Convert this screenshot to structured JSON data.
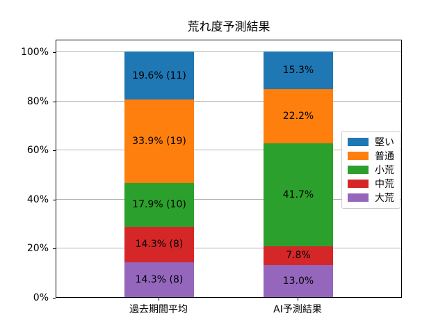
{
  "chart_data": {
    "type": "bar",
    "stacked": true,
    "title": "荒れ度予測結果",
    "categories": [
      "過去期間平均",
      "AI予測結果"
    ],
    "series": [
      {
        "name": "大荒",
        "color": "#9467bd",
        "values": [
          14.3,
          13.0
        ],
        "bar_labels": [
          "14.3% (8)",
          "13.0%"
        ]
      },
      {
        "name": "中荒",
        "color": "#d62728",
        "values": [
          14.3,
          7.8
        ],
        "bar_labels": [
          "14.3% (8)",
          "7.8%"
        ]
      },
      {
        "name": "小荒",
        "color": "#2ca02c",
        "values": [
          17.9,
          41.7
        ],
        "bar_labels": [
          "17.9% (10)",
          "41.7%"
        ]
      },
      {
        "name": "普通",
        "color": "#ff7f0e",
        "values": [
          33.9,
          22.2
        ],
        "bar_labels": [
          "33.9% (19)",
          "22.2%"
        ]
      },
      {
        "name": "堅い",
        "color": "#1f77b4",
        "values": [
          19.6,
          15.3
        ],
        "bar_labels": [
          "19.6% (11)",
          "15.3%"
        ]
      }
    ],
    "legend": {
      "position": "center right",
      "entries": [
        "堅い",
        "普通",
        "小荒",
        "中荒",
        "大荒"
      ]
    },
    "yticks": [
      0,
      20,
      40,
      60,
      80,
      100
    ],
    "ytick_labels": [
      "0%",
      "20%",
      "40%",
      "60%",
      "80%",
      "100%"
    ],
    "ylim": [
      0,
      105
    ],
    "grid": true
  },
  "style": {
    "grid_color": "#b0b0b0",
    "axis_color": "#000000",
    "text_color": "#000000",
    "legend_border_color": "#cccccc",
    "background": "#ffffff"
  }
}
